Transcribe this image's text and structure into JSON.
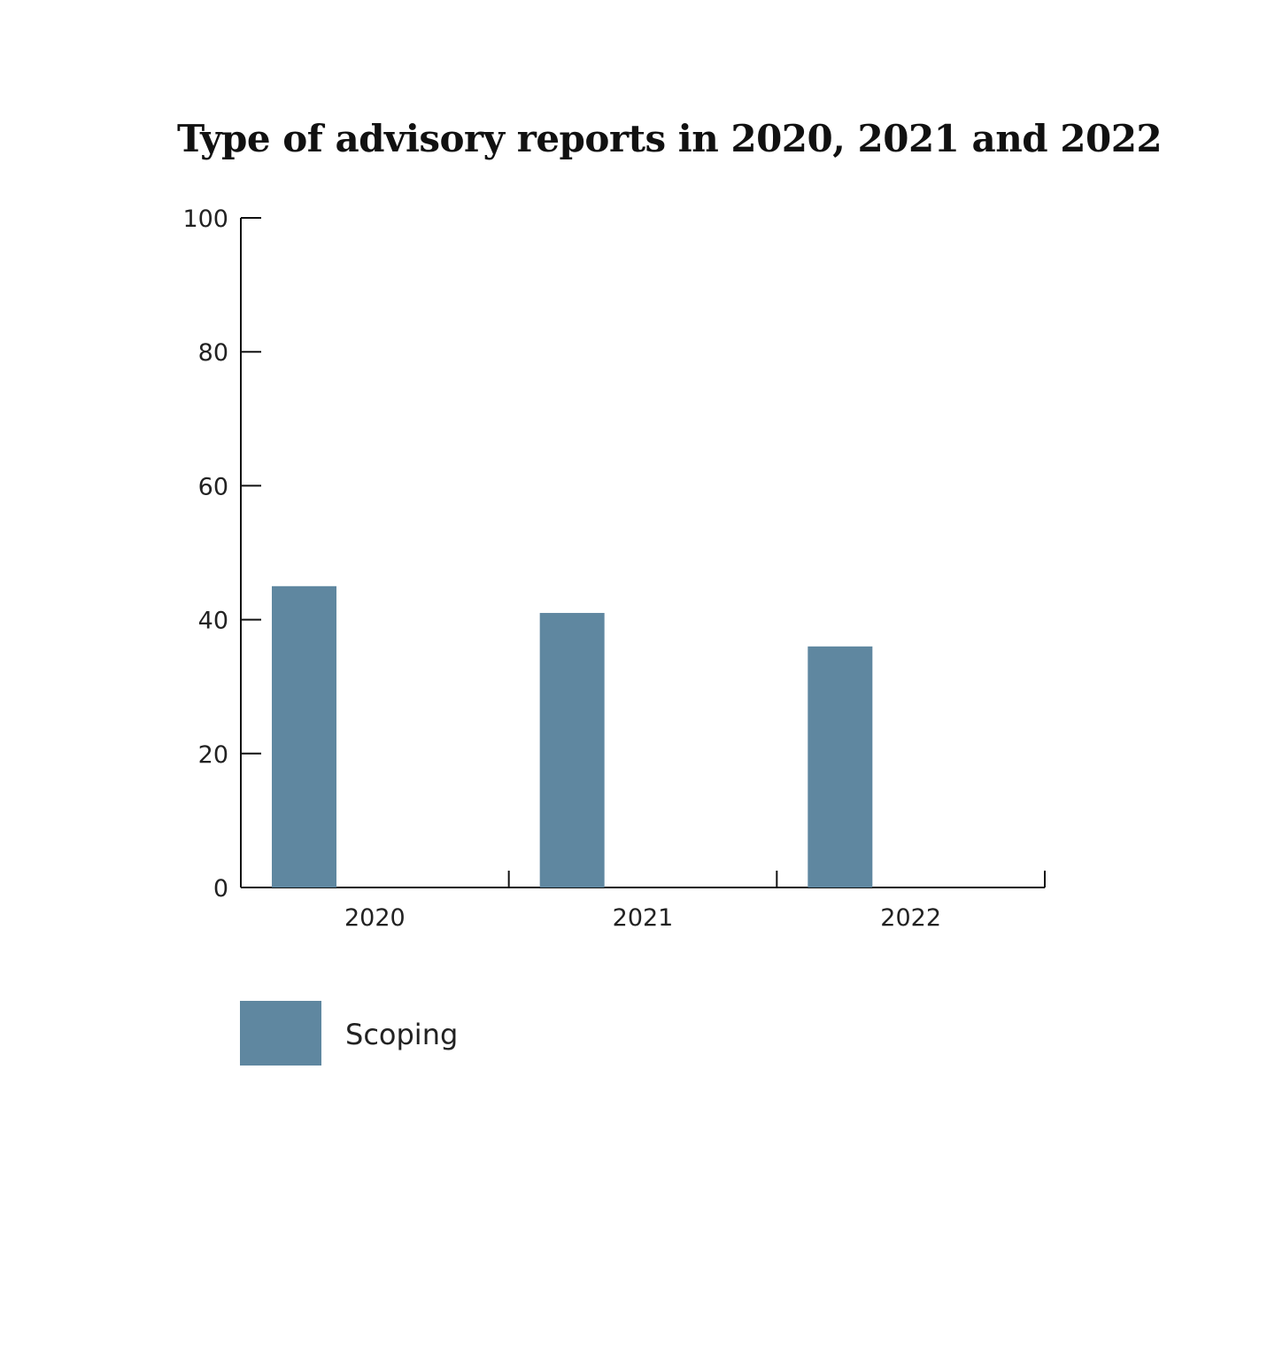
{
  "chart_data": {
    "type": "bar",
    "title": "Type of advisory reports in 2020, 2021 and 2022",
    "categories": [
      "2020",
      "2021",
      "2022"
    ],
    "series": [
      {
        "name": "Scoping",
        "values": [
          45,
          41,
          36
        ],
        "color": "#5f87a0"
      }
    ],
    "ylim": [
      0,
      100
    ],
    "yticks": [
      0,
      20,
      40,
      60,
      80,
      100
    ],
    "grid": false,
    "legend_position": "bottom-left"
  }
}
